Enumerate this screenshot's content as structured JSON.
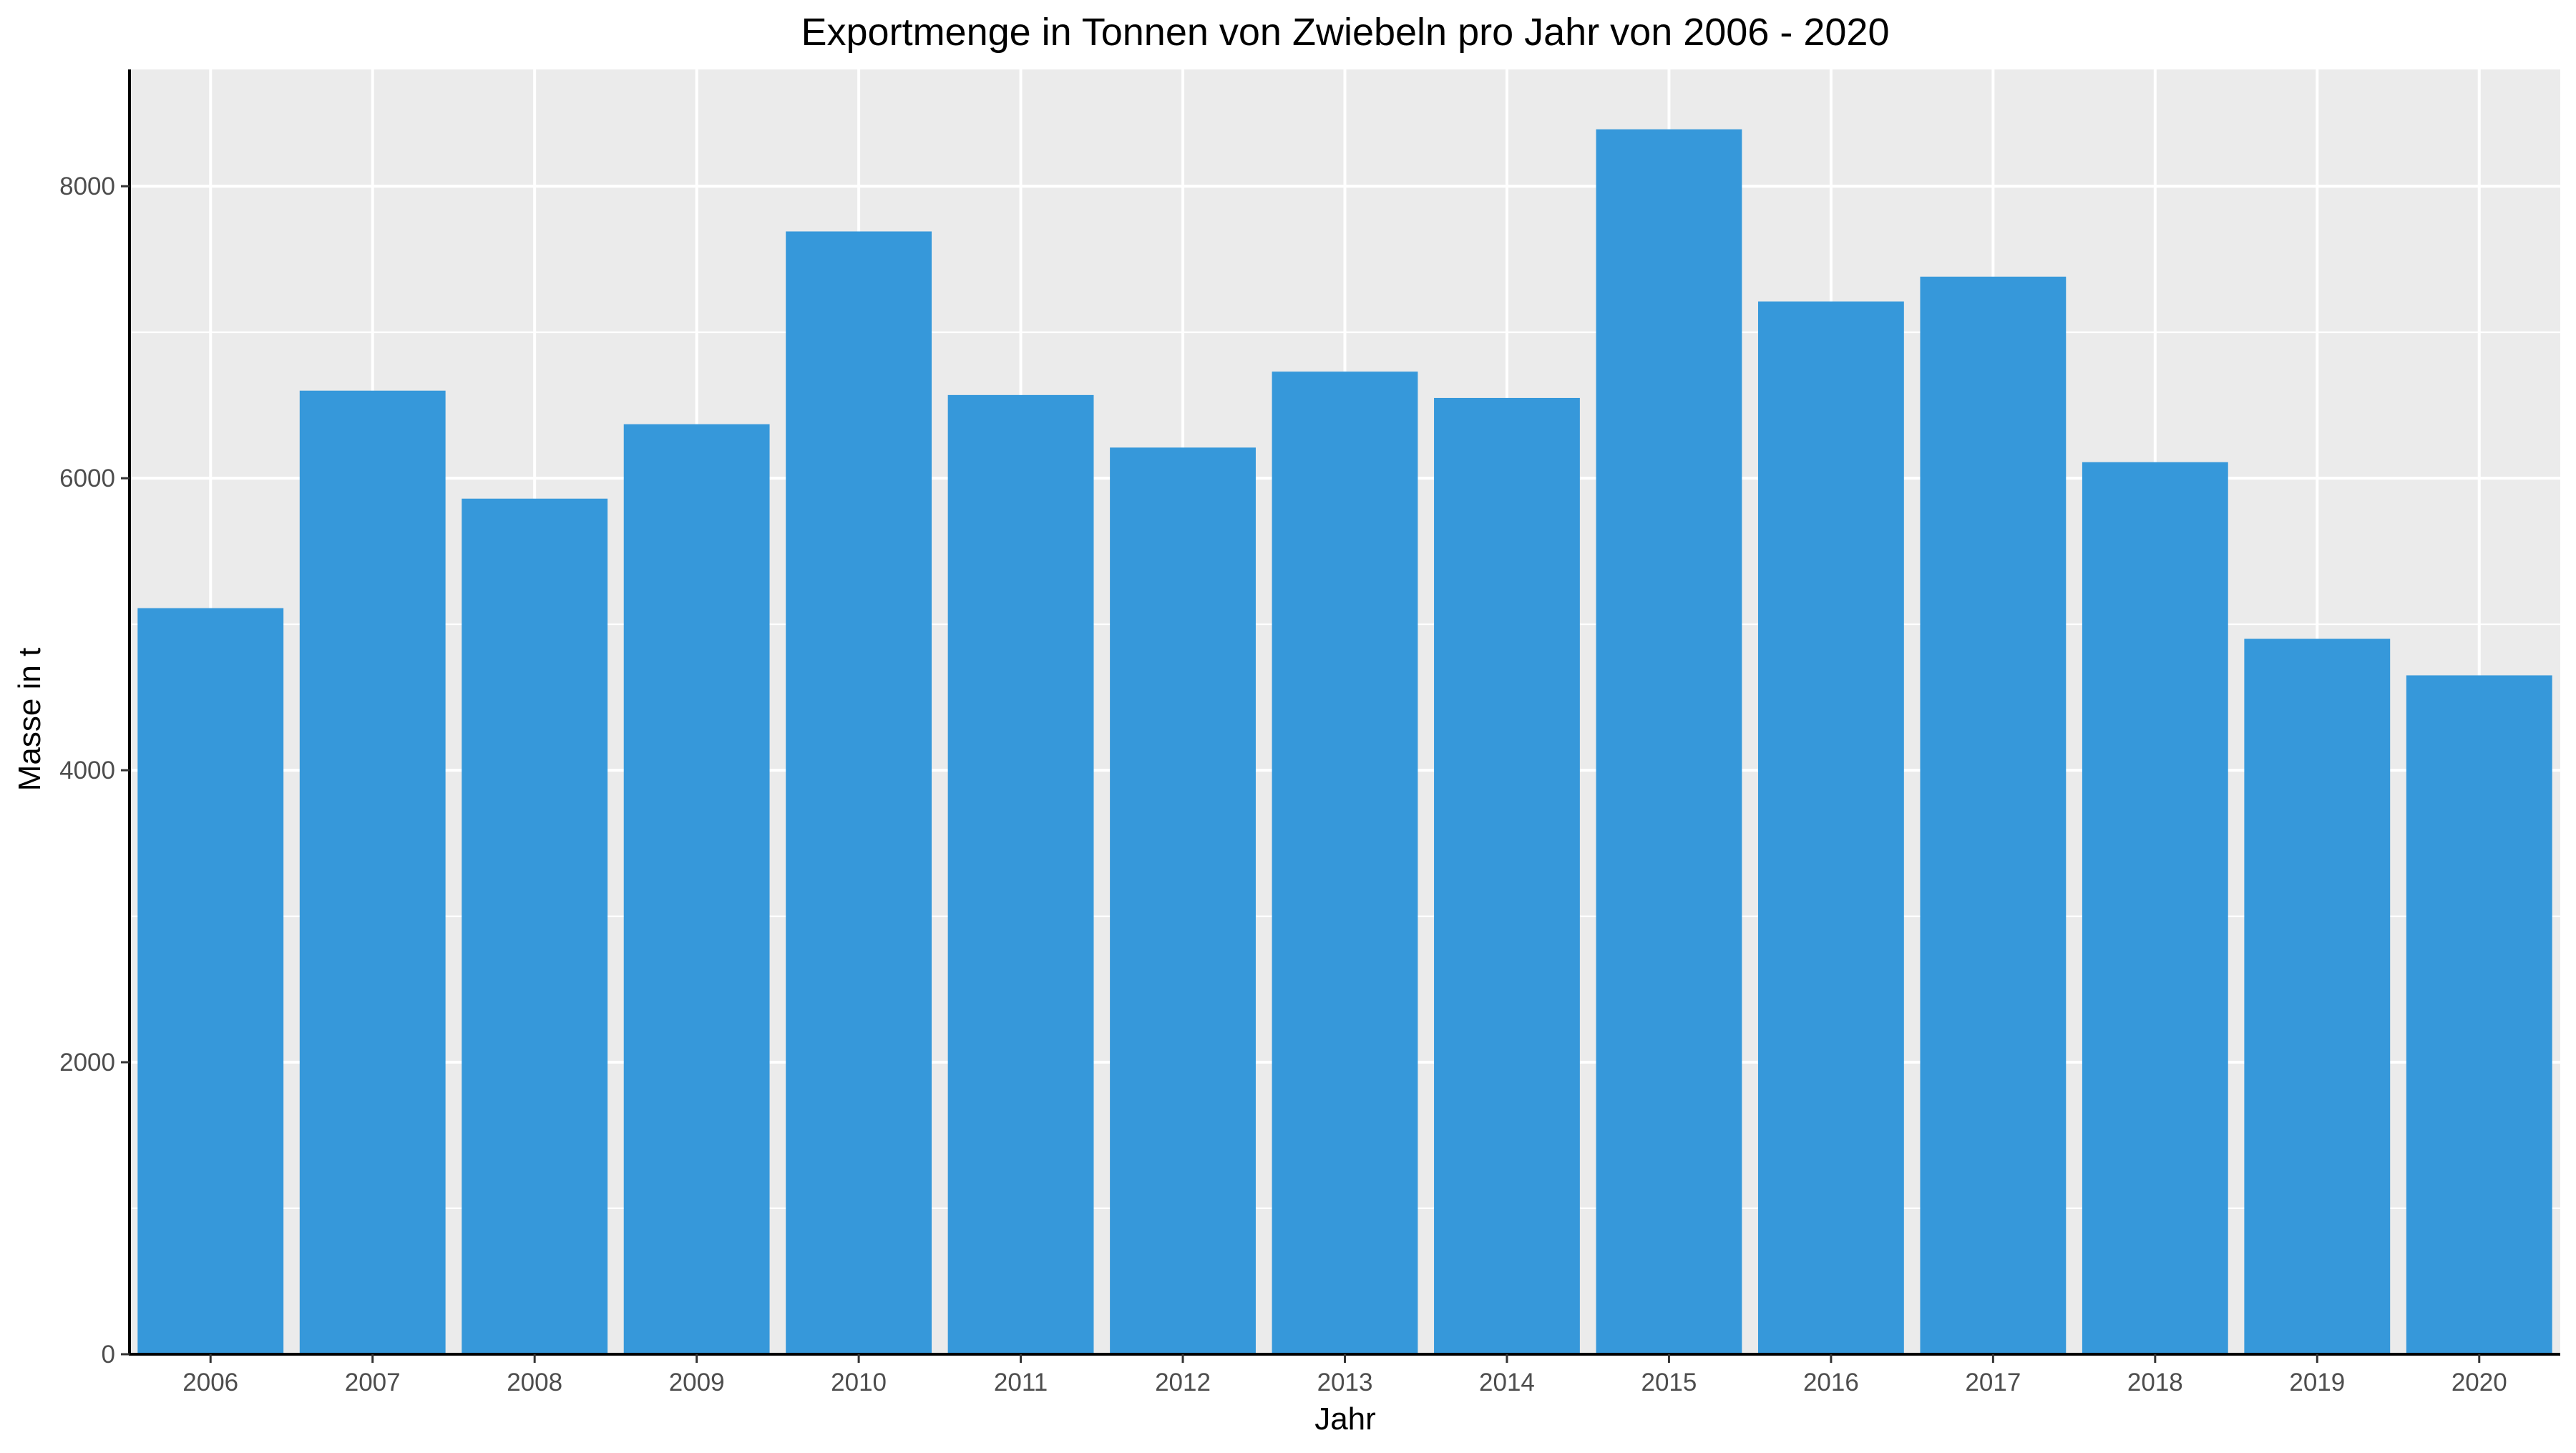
{
  "chart_data": {
    "type": "bar",
    "title": "Exportmenge in Tonnen von Zwiebeln pro Jahr von 2006 - 2020",
    "xlabel": "Jahr",
    "ylabel": "Masse in t",
    "categories": [
      "2006",
      "2007",
      "2008",
      "2009",
      "2010",
      "2011",
      "2012",
      "2013",
      "2014",
      "2015",
      "2016",
      "2017",
      "2018",
      "2019",
      "2020"
    ],
    "values": [
      5110,
      6600,
      5860,
      6370,
      7690,
      6570,
      6210,
      6730,
      6550,
      8390,
      7210,
      7380,
      6110,
      4900,
      4650
    ],
    "ylim": [
      0,
      8800
    ],
    "yticks": [
      0,
      2000,
      4000,
      6000,
      8000
    ],
    "ytick_labels": [
      "0",
      "2000",
      "4000",
      "6000",
      "8000"
    ],
    "grid": true,
    "legend": "none",
    "colors": {
      "bar": "#3698DA",
      "panel_background": "#EBEBEB",
      "grid_line": "#FFFFFF",
      "axis_line": "#000000"
    }
  }
}
